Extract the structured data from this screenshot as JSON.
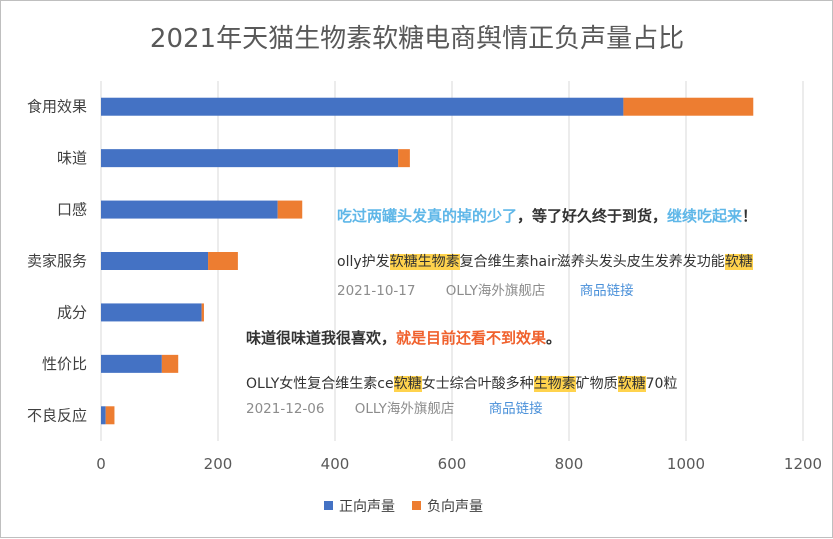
{
  "chart_data": {
    "type": "bar",
    "orientation": "horizontal",
    "stacked": true,
    "title": "2021年天猫生物素软糖电商舆情正负声量占比",
    "categories": [
      "食用效果",
      "味道",
      "口感",
      "卖家服务",
      "成分",
      "性价比",
      "不良反应"
    ],
    "series": [
      {
        "name": "正向声量",
        "color": "#4472c4",
        "values": [
          893,
          508,
          302,
          183,
          172,
          104,
          8
        ]
      },
      {
        "name": "负向声量",
        "color": "#ed7d31",
        "values": [
          222,
          20,
          42,
          51,
          4,
          28,
          15
        ]
      }
    ],
    "xlim": [
      0,
      1200
    ],
    "xticks": [
      "0",
      "200",
      "400",
      "600",
      "800",
      "1000",
      "1200"
    ],
    "grid": "vertical",
    "legend": "bottom"
  },
  "notes": [
    {
      "quote": [
        {
          "text": "吃过两罐头发真的掉的少了",
          "color": "#5fb7e8"
        },
        {
          "text": "，等了好久终于到货，",
          "color": "#333333"
        },
        {
          "text": "继续吃起来",
          "color": "#5fb7e8"
        },
        {
          "text": "！",
          "color": "#333333"
        }
      ],
      "product": [
        {
          "text": "olly护发",
          "hl": false
        },
        {
          "text": "软糖生物素",
          "hl": true
        },
        {
          "text": "复合维生素hair滋养头发头皮生发养发功能",
          "hl": false
        },
        {
          "text": "软糖",
          "hl": true
        }
      ],
      "date": "2021-10-17",
      "shop": "OLLY海外旗舰店",
      "link": "商品链接"
    },
    {
      "quote": [
        {
          "text": "味道很味道我很喜欢，",
          "color": "#333333"
        },
        {
          "text": "就是目前还看不到效果",
          "color": "#f0612d"
        },
        {
          "text": "。",
          "color": "#333333"
        }
      ],
      "product": [
        {
          "text": "OLLY女性复合维生素ce",
          "hl": false
        },
        {
          "text": "软糖",
          "hl": true
        },
        {
          "text": "女士综合叶酸多种",
          "hl": false
        },
        {
          "text": "生物素",
          "hl": true
        },
        {
          "text": "矿物质",
          "hl": false
        },
        {
          "text": "软糖",
          "hl": true
        },
        {
          "text": "70粒",
          "hl": false
        }
      ],
      "date": "2021-12-06",
      "shop": "OLLY海外旗舰店",
      "link": "商品链接"
    }
  ]
}
